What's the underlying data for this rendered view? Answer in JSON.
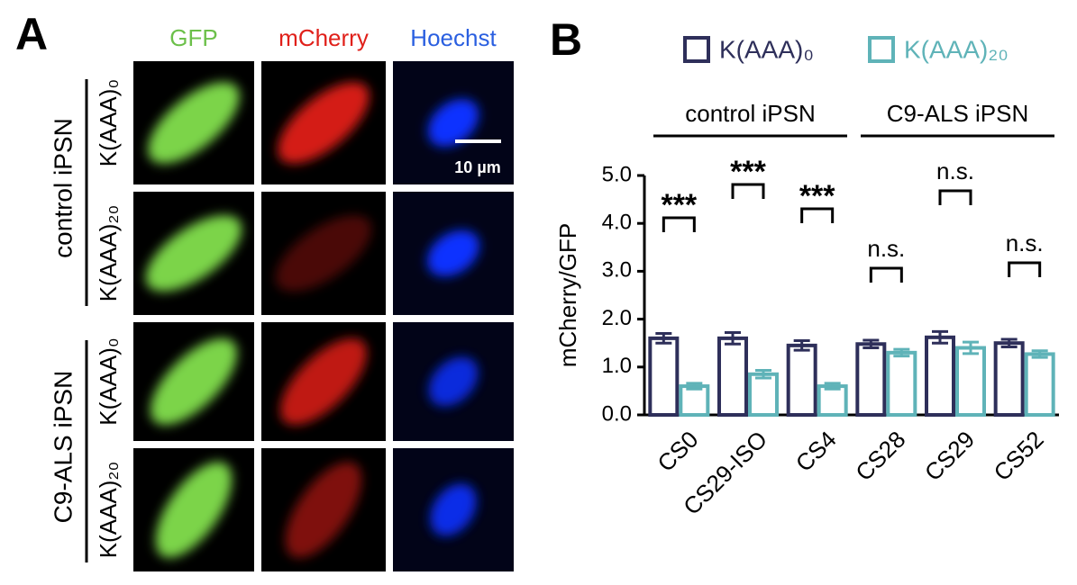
{
  "panel_a": {
    "label": "A",
    "columns": [
      "GFP",
      "mCherry",
      "Hoechst"
    ],
    "groups": [
      {
        "label": "control iPSN",
        "rows": [
          "K(AAA)₀",
          "K(AAA)₂₀"
        ]
      },
      {
        "label": "C9-ALS iPSN",
        "rows": [
          "K(AAA)₀",
          "K(AAA)₂₀"
        ]
      }
    ],
    "scale_bar": "10 µm"
  },
  "panel_b_label": "B",
  "chart_data": {
    "type": "bar",
    "ylabel": "mCherry/GFP",
    "groups": [
      "control iPSN",
      "C9-ALS iPSN"
    ],
    "categories": [
      "CS0",
      "CS29-ISO",
      "CS4",
      "CS28",
      "CS29",
      "CS52"
    ],
    "series": [
      {
        "name": "K(AAA)₀",
        "color": "#2e2f5a",
        "values": [
          1.6,
          1.6,
          1.45,
          1.48,
          1.62,
          1.5
        ],
        "errors": [
          0.1,
          0.12,
          0.1,
          0.08,
          0.12,
          0.08
        ]
      },
      {
        "name": "K(AAA)₂₀",
        "color": "#5fb3b8",
        "values": [
          0.6,
          0.85,
          0.6,
          1.3,
          1.4,
          1.27
        ],
        "errors": [
          0.06,
          0.08,
          0.06,
          0.07,
          0.12,
          0.07
        ]
      }
    ],
    "annotations": [
      "***",
      "***",
      "***",
      "n.s.",
      "n.s.",
      "n.s."
    ],
    "ylim": [
      0,
      5
    ],
    "yticks": [
      {
        "value": 0,
        "label": "0.0"
      },
      {
        "value": 1,
        "label": "1.0"
      },
      {
        "value": 2,
        "label": "2.0"
      },
      {
        "value": 3,
        "label": "3.0"
      },
      {
        "value": 4,
        "label": "4.0"
      },
      {
        "value": 5,
        "label": "5.0"
      }
    ]
  }
}
